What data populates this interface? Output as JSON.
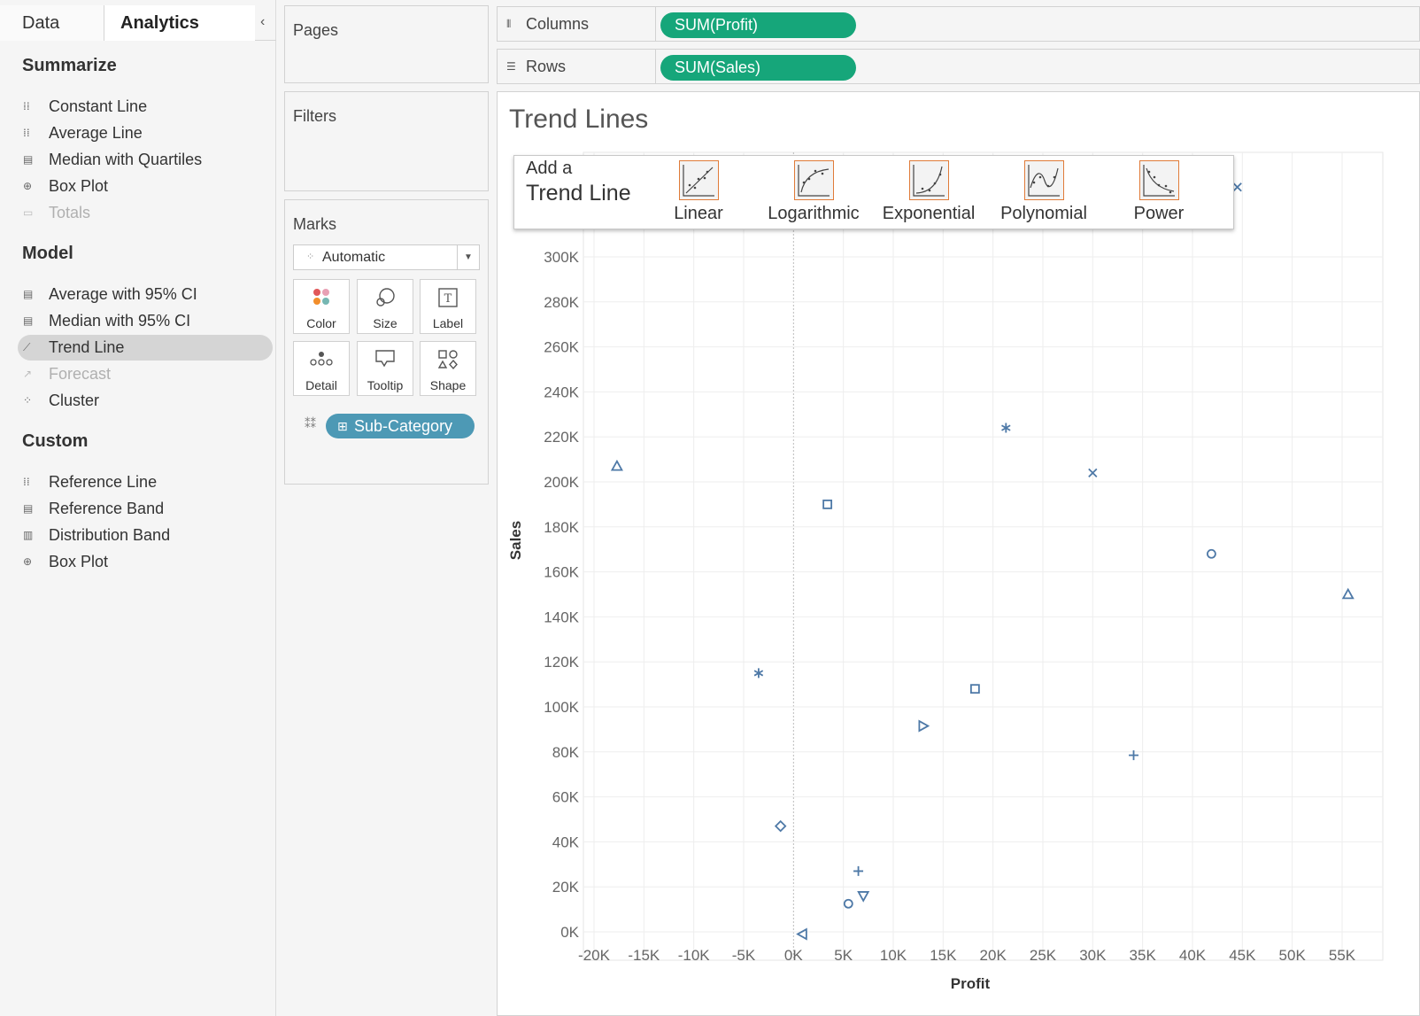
{
  "tabs": {
    "data": "Data",
    "analytics": "Analytics",
    "collapse_icon": "‹"
  },
  "analytics": {
    "summarize": {
      "title": "Summarize",
      "items": [
        {
          "label": "Constant Line",
          "icon": "reference-line-icon",
          "glyph": "⁞⁞",
          "enabled": true
        },
        {
          "label": "Average Line",
          "icon": "reference-line-icon",
          "glyph": "⁞⁞",
          "enabled": true
        },
        {
          "label": "Median with Quartiles",
          "icon": "distribution-band-icon",
          "glyph": "▤",
          "enabled": true
        },
        {
          "label": "Box Plot",
          "icon": "box-plot-icon",
          "glyph": "⊕",
          "enabled": true
        },
        {
          "label": "Totals",
          "icon": "totals-icon",
          "glyph": "▭",
          "enabled": false
        }
      ]
    },
    "model": {
      "title": "Model",
      "items": [
        {
          "label": "Average with 95% CI",
          "icon": "distribution-band-icon",
          "glyph": "▤",
          "enabled": true
        },
        {
          "label": "Median with 95% CI",
          "icon": "distribution-band-icon",
          "glyph": "▤",
          "enabled": true
        },
        {
          "label": "Trend Line",
          "icon": "trend-line-icon",
          "glyph": "⟋",
          "enabled": true,
          "selected": true
        },
        {
          "label": "Forecast",
          "icon": "forecast-icon",
          "glyph": "↗",
          "enabled": false
        },
        {
          "label": "Cluster",
          "icon": "cluster-icon",
          "glyph": "⁘",
          "enabled": true
        }
      ]
    },
    "custom": {
      "title": "Custom",
      "items": [
        {
          "label": "Reference Line",
          "icon": "reference-line-icon",
          "glyph": "⁞⁞",
          "enabled": true
        },
        {
          "label": "Reference Band",
          "icon": "reference-band-icon",
          "glyph": "▤",
          "enabled": true
        },
        {
          "label": "Distribution Band",
          "icon": "distribution-band-icon",
          "glyph": "▥",
          "enabled": true
        },
        {
          "label": "Box Plot",
          "icon": "box-plot-icon",
          "glyph": "⊕",
          "enabled": true
        }
      ]
    }
  },
  "pages": {
    "title": "Pages"
  },
  "filters": {
    "title": "Filters"
  },
  "marks": {
    "title": "Marks",
    "type": "Automatic",
    "buttons": [
      {
        "label": "Color",
        "icon": "color-icon"
      },
      {
        "label": "Size",
        "icon": "size-icon"
      },
      {
        "label": "Label",
        "icon": "label-icon"
      },
      {
        "label": "Detail",
        "icon": "detail-icon"
      },
      {
        "label": "Tooltip",
        "icon": "tooltip-icon"
      },
      {
        "label": "Shape",
        "icon": "shape-icon"
      }
    ],
    "field": "Sub-Category"
  },
  "shelves": {
    "columns": {
      "label": "Columns",
      "pill": "SUM(Profit)"
    },
    "rows": {
      "label": "Rows",
      "pill": "SUM(Sales)"
    }
  },
  "colors": {
    "pill_green": "#16a67a",
    "pill_blue": "#4d99b5",
    "mark": "#4e79a7",
    "trend_option_border": "#e07b39"
  },
  "viz": {
    "title": "Trend Lines"
  },
  "trend_popup": {
    "line1": "Add a",
    "line2": "Trend Line",
    "options": [
      "Linear",
      "Logarithmic",
      "Exponential",
      "Polynomial",
      "Power"
    ]
  },
  "chart_data": {
    "type": "scatter",
    "title": "Trend Lines",
    "xlabel": "Profit",
    "ylabel": "Sales",
    "xlim": [
      -22000,
      58000
    ],
    "ylim": [
      -5000,
      330000
    ],
    "x_ticks": [
      "-20K",
      "-15K",
      "-10K",
      "-5K",
      "0K",
      "5K",
      "10K",
      "15K",
      "20K",
      "25K",
      "30K",
      "35K",
      "40K",
      "45K",
      "50K",
      "55K"
    ],
    "y_ticks": [
      "0K",
      "20K",
      "40K",
      "60K",
      "80K",
      "100K",
      "120K",
      "140K",
      "160K",
      "180K",
      "200K",
      "220K",
      "240K",
      "260K",
      "280K",
      "300K"
    ],
    "grid": true,
    "marker_shapes_by": "Sub-Category",
    "points": [
      {
        "x": -17700,
        "y": 207000,
        "shape": "triangle-up"
      },
      {
        "x": -3500,
        "y": 115000,
        "shape": "asterisk"
      },
      {
        "x": -1300,
        "y": 47000,
        "shape": "diamond"
      },
      {
        "x": 3400,
        "y": 190000,
        "shape": "square"
      },
      {
        "x": 900,
        "y": -1000,
        "shape": "triangle-left"
      },
      {
        "x": 5500,
        "y": 12500,
        "shape": "circle"
      },
      {
        "x": 6500,
        "y": 27000,
        "shape": "plus"
      },
      {
        "x": 7000,
        "y": 16000,
        "shape": "triangle-down"
      },
      {
        "x": 13000,
        "y": 91500,
        "shape": "triangle-right"
      },
      {
        "x": 18200,
        "y": 108000,
        "shape": "square"
      },
      {
        "x": 21300,
        "y": 224000,
        "shape": "asterisk"
      },
      {
        "x": 30000,
        "y": 204000,
        "shape": "x"
      },
      {
        "x": 34100,
        "y": 78500,
        "shape": "plus"
      },
      {
        "x": 41900,
        "y": 168000,
        "shape": "circle"
      },
      {
        "x": 44500,
        "y": 331000,
        "shape": "x"
      },
      {
        "x": 55600,
        "y": 150000,
        "shape": "triangle-up"
      }
    ]
  }
}
